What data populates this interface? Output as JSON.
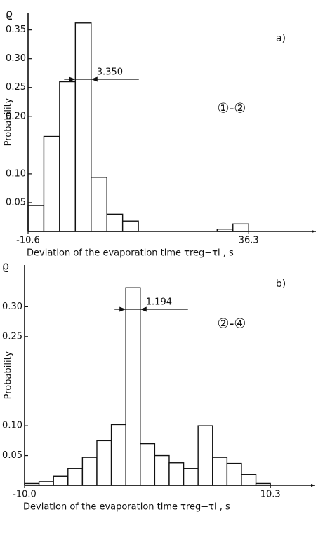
{
  "chart_data": [
    {
      "type": "histogram",
      "ylabel": "Probability",
      "ysymbol": "ϱ",
      "xlabel": "Deviation of the evaporation time τreg−τi , s",
      "annotations": [
        "a)",
        "①-②",
        "3.350"
      ],
      "bins": [
        -10.6,
        -7.25,
        -3.9,
        -0.55,
        2.8,
        6.15,
        9.5,
        12.85,
        16.2,
        19.55,
        22.9,
        26.25,
        29.6,
        32.95,
        36.3
      ],
      "values": [
        0.045,
        0.165,
        0.26,
        0.362,
        0.094,
        0.03,
        0.018,
        0,
        0,
        0,
        0,
        0,
        0.004,
        0.013
      ],
      "color": "#ffffff",
      "xlim": [
        -10.6,
        50.6
      ],
      "xticks": [
        -10.6,
        36.3
      ],
      "ylim": [
        0,
        0.38
      ],
      "yticks": [
        0.05,
        {
          "value": 0.1,
          "label": "0.10"
        },
        {
          "value": 0.2,
          "label": "0.20"
        },
        0.25,
        {
          "value": 0.3,
          "label": "0.30"
        },
        0.35
      ]
    },
    {
      "type": "histogram",
      "ylabel": "Probability",
      "ysymbol": "ϱ",
      "xlabel": "Deviation of the evaporation time τreg−τi , s",
      "annotations": [
        "b)",
        "②-④",
        "1.194"
      ],
      "bins": [
        -10.0,
        -8.806,
        -7.612,
        -6.418,
        -5.224,
        -4.03,
        -2.836,
        -1.642,
        -0.448,
        0.746,
        1.94,
        3.134,
        4.328,
        5.522,
        6.716,
        7.91,
        9.104,
        10.298
      ],
      "values": [
        0.003,
        0.006,
        0.015,
        0.028,
        0.047,
        0.075,
        0.102,
        0.332,
        0.07,
        0.05,
        0.038,
        0.028,
        0.1,
        0.047,
        0.037,
        0.018,
        0.003
      ],
      "color": "#ffffff",
      "xlim": [
        -10.0,
        14.0
      ],
      "xticks": [
        {
          "value": -10.0,
          "label": "-10.0"
        },
        10.3
      ],
      "ylim": [
        0,
        0.37
      ],
      "yticks": [
        0.05,
        {
          "value": 0.1,
          "label": "0.10"
        },
        0.25,
        {
          "value": 0.3,
          "label": "0.30"
        }
      ]
    }
  ]
}
